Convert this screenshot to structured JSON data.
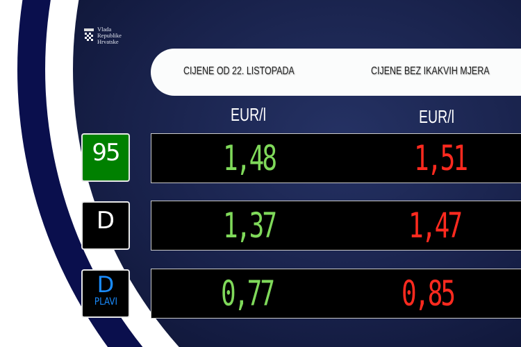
{
  "logo": {
    "lines": [
      "Vlada",
      "Republike",
      "Hrvatske"
    ]
  },
  "header": {
    "col1": "CIJENE OD 22. LISTOPADA",
    "col2": "CIJENE BEZ IKAKVIH MJERA"
  },
  "units": {
    "col1": "EUR/l",
    "col2": "EUR/l"
  },
  "rows": [
    {
      "badge": "95",
      "badge_sub": "",
      "badge_bg": "#008000",
      "badge_color": "#ffffff",
      "current": "1,48",
      "without": "1,51"
    },
    {
      "badge": "D",
      "badge_sub": "",
      "badge_bg": "#000000",
      "badge_color": "#ffffff",
      "current": "1,37",
      "without": "1,47"
    },
    {
      "badge": "D",
      "badge_sub": "PLAVI",
      "badge_bg": "#000000",
      "badge_color": "#1a8cff",
      "current": "0,77",
      "without": "0,85"
    }
  ],
  "colors": {
    "current": "#7fd95a",
    "without": "#ff2a1f",
    "navy": "#0a0f4d"
  }
}
